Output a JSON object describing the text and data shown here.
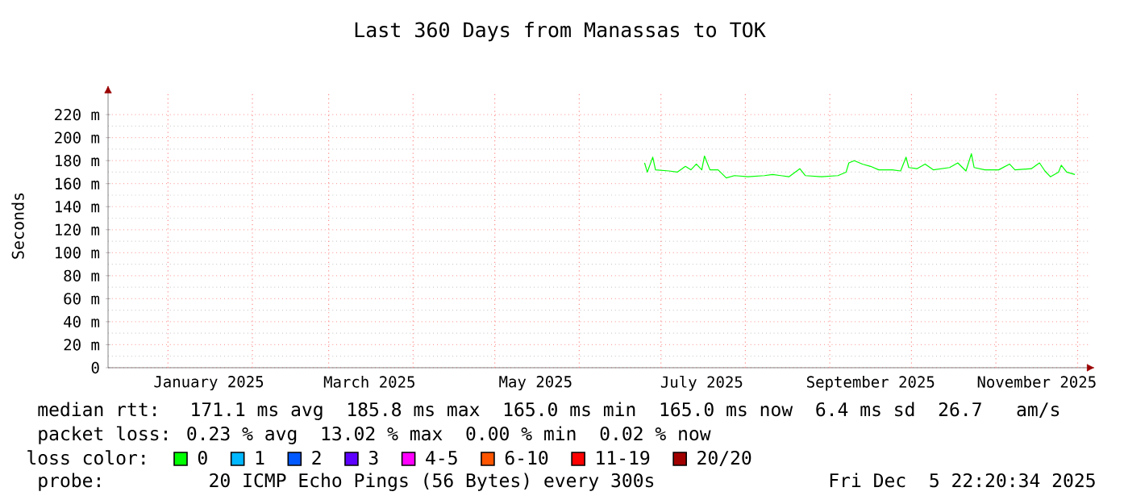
{
  "chart_data": {
    "type": "line",
    "title": "Last 360 Days from Manassas to TOK",
    "ylabel": "Seconds",
    "xlim": [
      "2024-12-10",
      "2025-12-05"
    ],
    "xticks": [
      {
        "value": "2025-01-16",
        "label": "January 2025"
      },
      {
        "value": "2025-03-16",
        "label": "March 2025"
      },
      {
        "value": "2025-05-16",
        "label": "May 2025"
      },
      {
        "value": "2025-07-16",
        "label": "July 2025"
      },
      {
        "value": "2025-09-16",
        "label": "September 2025"
      },
      {
        "value": "2025-11-16",
        "label": "November 2025"
      },
      {
        "value": "2025-01-01",
        "label": null
      },
      {
        "value": "2025-02-01",
        "label": null
      },
      {
        "value": "2025-03-01",
        "label": null
      },
      {
        "value": "2025-04-01",
        "label": null
      },
      {
        "value": "2025-05-01",
        "label": null
      },
      {
        "value": "2025-06-01",
        "label": null
      },
      {
        "value": "2025-07-01",
        "label": null
      },
      {
        "value": "2025-08-01",
        "label": null
      },
      {
        "value": "2025-09-01",
        "label": null
      },
      {
        "value": "2025-10-01",
        "label": null
      },
      {
        "value": "2025-11-01",
        "label": null
      },
      {
        "value": "2025-12-01",
        "label": null
      }
    ],
    "ylim": [
      0,
      240
    ],
    "yticks": [
      0,
      {
        "value": 20,
        "label": "20 m"
      },
      {
        "value": 40,
        "label": "40 m"
      },
      {
        "value": 60,
        "label": "60 m"
      },
      {
        "value": 80,
        "label": "80 m"
      },
      {
        "value": 100,
        "label": "100 m"
      },
      {
        "value": 120,
        "label": "120 m"
      },
      {
        "value": 140,
        "label": "140 m"
      },
      {
        "value": 160,
        "label": "160 m"
      },
      {
        "value": 180,
        "label": "180 m"
      },
      {
        "value": 200,
        "label": "200 m"
      },
      {
        "value": 220,
        "label": "220 m"
      }
    ],
    "grid": true,
    "legend": "bottom",
    "legend_title": "loss color:",
    "x": [
      "2025-06-25",
      "2025-06-26",
      "2025-06-28",
      "2025-06-29",
      "2025-07-04",
      "2025-07-07",
      "2025-07-10",
      "2025-07-12",
      "2025-07-14",
      "2025-07-16",
      "2025-07-17",
      "2025-07-19",
      "2025-07-22",
      "2025-07-25",
      "2025-07-28",
      "2025-08-02",
      "2025-08-08",
      "2025-08-11",
      "2025-08-14",
      "2025-08-17",
      "2025-08-21",
      "2025-08-23",
      "2025-08-29",
      "2025-09-04",
      "2025-09-07",
      "2025-09-08",
      "2025-09-10",
      "2025-09-13",
      "2025-09-16",
      "2025-09-19",
      "2025-09-24",
      "2025-09-27",
      "2025-09-29",
      "2025-09-30",
      "2025-10-03",
      "2025-10-06",
      "2025-10-09",
      "2025-10-15",
      "2025-10-18",
      "2025-10-21",
      "2025-10-23",
      "2025-10-24",
      "2025-10-28",
      "2025-11-02",
      "2025-11-06",
      "2025-11-08",
      "2025-11-14",
      "2025-11-17",
      "2025-11-19",
      "2025-11-21",
      "2025-11-24",
      "2025-11-25",
      "2025-11-27",
      "2025-11-30"
    ],
    "series": [
      {
        "name": "0",
        "color": "#00ff00",
        "values": [
          178,
          170,
          183,
          172,
          171,
          170,
          175,
          172,
          177,
          172,
          184,
          172,
          172,
          165,
          167,
          166,
          167,
          168,
          167,
          166,
          173,
          167,
          166,
          167,
          170,
          178,
          180,
          177,
          175,
          172,
          172,
          171,
          183,
          174,
          173,
          177,
          172,
          174,
          178,
          171,
          186,
          174,
          172,
          172,
          177,
          172,
          173,
          178,
          171,
          166,
          170,
          176,
          170,
          168
        ]
      },
      {
        "name": "1",
        "color": "#00b8ff",
        "values": [
          null,
          null,
          null,
          null,
          null,
          null,
          null,
          null,
          null,
          null,
          null,
          null,
          null,
          null,
          null,
          null,
          null,
          null,
          null,
          null,
          null,
          null,
          null,
          null,
          null,
          null,
          null,
          null,
          null,
          null,
          null,
          null,
          null,
          null,
          null,
          null,
          null,
          null,
          null,
          null,
          null,
          null,
          null,
          null,
          null,
          null,
          null,
          null,
          null,
          null,
          null,
          null,
          null,
          null
        ]
      },
      {
        "name": "2",
        "color": "#0059ff",
        "values": [
          null,
          null,
          null,
          null,
          null,
          null,
          null,
          null,
          null,
          null,
          null,
          null,
          null,
          null,
          null,
          null,
          null,
          null,
          null,
          null,
          null,
          null,
          null,
          null,
          null,
          null,
          null,
          null,
          null,
          null,
          null,
          null,
          null,
          null,
          null,
          null,
          null,
          null,
          null,
          null,
          null,
          null,
          null,
          null,
          null,
          null,
          null,
          null,
          null,
          null,
          null,
          null,
          null,
          null
        ]
      },
      {
        "name": "3",
        "color": "#5e00ff",
        "values": [
          null,
          null,
          null,
          null,
          null,
          null,
          null,
          null,
          null,
          null,
          null,
          null,
          null,
          null,
          null,
          null,
          null,
          null,
          null,
          null,
          null,
          null,
          null,
          null,
          null,
          null,
          null,
          null,
          null,
          null,
          null,
          null,
          null,
          null,
          null,
          null,
          null,
          null,
          null,
          null,
          null,
          null,
          null,
          null,
          null,
          null,
          null,
          null,
          null,
          null,
          null,
          null,
          null,
          null
        ]
      },
      {
        "name": "4-5",
        "color": "#ff00ff",
        "values": [
          null,
          null,
          null,
          null,
          null,
          null,
          null,
          null,
          null,
          null,
          null,
          null,
          null,
          null,
          null,
          null,
          null,
          null,
          null,
          null,
          null,
          null,
          null,
          null,
          null,
          null,
          null,
          null,
          null,
          null,
          null,
          null,
          null,
          null,
          null,
          null,
          null,
          null,
          null,
          null,
          null,
          null,
          null,
          null,
          null,
          null,
          null,
          null,
          null,
          null,
          null,
          null,
          null,
          null
        ]
      },
      {
        "name": "6-10",
        "color": "#ff5500",
        "values": [
          null,
          null,
          null,
          null,
          null,
          null,
          null,
          null,
          null,
          null,
          null,
          null,
          null,
          null,
          null,
          null,
          null,
          null,
          null,
          null,
          null,
          null,
          null,
          null,
          null,
          null,
          null,
          null,
          null,
          null,
          null,
          null,
          null,
          null,
          null,
          null,
          null,
          null,
          null,
          null,
          null,
          null,
          null,
          null,
          null,
          null,
          null,
          null,
          null,
          null,
          null,
          null,
          null,
          null
        ]
      },
      {
        "name": "11-19",
        "color": "#ff0000",
        "values": [
          null,
          null,
          null,
          null,
          null,
          null,
          null,
          null,
          null,
          null,
          null,
          null,
          null,
          null,
          null,
          null,
          null,
          null,
          null,
          null,
          null,
          null,
          null,
          null,
          null,
          null,
          null,
          null,
          null,
          null,
          null,
          null,
          null,
          null,
          null,
          null,
          null,
          null,
          null,
          null,
          null,
          null,
          null,
          null,
          null,
          null,
          null,
          null,
          null,
          null,
          null,
          null,
          null,
          null
        ]
      },
      {
        "name": "20/20",
        "color": "#a10000",
        "values": [
          null,
          null,
          null,
          null,
          null,
          null,
          null,
          null,
          null,
          null,
          null,
          null,
          null,
          null,
          null,
          null,
          null,
          null,
          null,
          null,
          null,
          null,
          null,
          null,
          null,
          null,
          null,
          null,
          null,
          null,
          null,
          null,
          null,
          null,
          null,
          null,
          null,
          null,
          null,
          null,
          null,
          null,
          null,
          null,
          null,
          null,
          null,
          null,
          null,
          null,
          null,
          null,
          null,
          null
        ]
      }
    ],
    "annotations": [
      "median rtt:  171.1 ms avg  185.8 ms max  165.0 ms min  165.0 ms now  6.4 ms sd  26.7   am/s",
      "packet loss: 0.23 % avg  13.02 % max  0.00 % min  0.02 % now",
      "probe:       20 ICMP Echo Pings (56 Bytes) every 300s",
      "Fri Dec  5 22:20:34 2025"
    ]
  }
}
